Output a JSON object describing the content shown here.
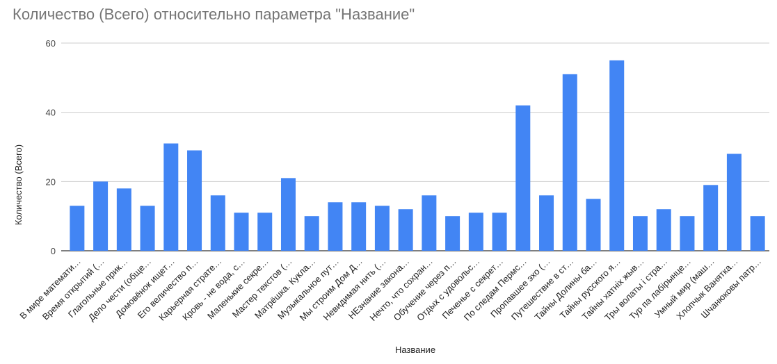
{
  "chart_data": {
    "type": "bar",
    "title": "Количество (Всего) относительно параметра \"Название\"",
    "xlabel": "Название",
    "ylabel": "Количество (Всего)",
    "ylim": [
      0,
      60
    ],
    "yticks": [
      0,
      20,
      40,
      60
    ],
    "grid": true,
    "bar_color": "#4285f4",
    "categories": [
      "В мире математи…",
      "Время открытий (…",
      "Глагольные прик…",
      "Дело чести (обще…",
      "Домовёнок ищет…",
      "Его величество п…",
      "Карьерная страте…",
      "Кровь - не вода, с…",
      "Маленькие секре…",
      "Мастер текстов (…",
      "Матрёшка. Кукла…",
      "Музыкальное пут…",
      "Мы строим Дом Д…",
      "Невидимая нить (…",
      "НЕзнание законa…",
      "Нечто, что сохран…",
      "Обучение через п…",
      "Отдых с удовольс…",
      "Печенье с секрет…",
      "По следам Пермс…",
      "Пропавшее эхо (…",
      "Путешествие в ст…",
      "Тайны Долины ба…",
      "Тайны русского я…",
      "Тайны хатніх жыв…",
      "Тры волаты і стра…",
      "Тур па лабірынце…",
      "Умный мир (маш…",
      "Хлопчык Ванятка…",
      "Шчанюковы патр…"
    ],
    "values": [
      13,
      20,
      18,
      13,
      31,
      29,
      16,
      11,
      11,
      21,
      10,
      14,
      14,
      13,
      12,
      16,
      10,
      11,
      11,
      42,
      16,
      51,
      15,
      55,
      10,
      12,
      10,
      19,
      28,
      10
    ]
  }
}
